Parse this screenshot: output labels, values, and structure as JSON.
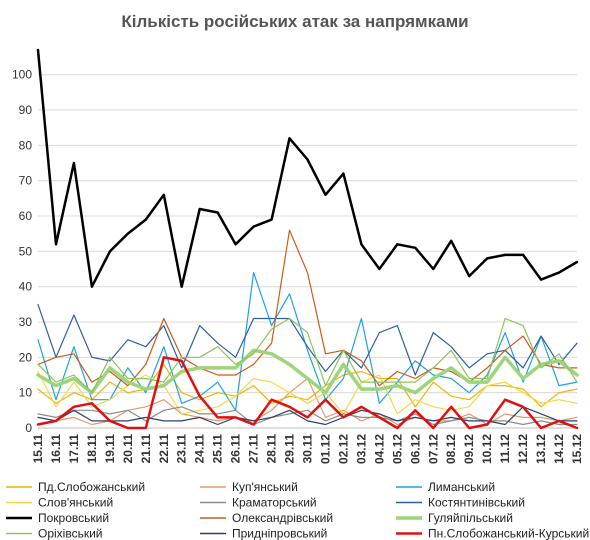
{
  "chart_data": {
    "type": "line",
    "title": "Кількість російських атак за напрямками",
    "xlabel": "",
    "ylabel": "",
    "ylim": [
      0,
      107
    ],
    "yticks": [
      0,
      10,
      20,
      30,
      40,
      50,
      60,
      70,
      80,
      90,
      100
    ],
    "grid": "horizontal",
    "legend_position": "bottom",
    "x": [
      "15.11",
      "16.11",
      "17.11",
      "18.11",
      "19.11",
      "20.11",
      "21.11",
      "22.11",
      "23.11",
      "24.11",
      "25.11",
      "26.11",
      "27.11",
      "28.11",
      "29.11",
      "30.11",
      "01.12",
      "02.12",
      "03.12",
      "04.12",
      "05.12",
      "06.12",
      "07.12",
      "08.12",
      "09.12",
      "10.12",
      "11.12",
      "12.12",
      "13.12",
      "14.12",
      "15.12"
    ],
    "series": [
      {
        "name": "Пд.Слобожанський",
        "color": "#f0b400",
        "width": 1.2,
        "values": [
          11,
          7,
          10,
          8,
          13,
          10,
          11,
          18,
          10,
          8,
          10,
          9,
          12,
          7,
          9,
          8,
          12,
          15,
          16,
          14,
          14,
          6,
          13,
          9,
          8,
          12,
          12,
          11,
          6,
          10,
          11
        ]
      },
      {
        "name": "Куп'янський",
        "color": "#e39a6a",
        "width": 1.2,
        "values": [
          1,
          2,
          3,
          1,
          2,
          5,
          6,
          8,
          4,
          3,
          2,
          3,
          2,
          5,
          10,
          14,
          3,
          5,
          2,
          4,
          1,
          3,
          2,
          2,
          4,
          1,
          4,
          3,
          3,
          2,
          3
        ]
      },
      {
        "name": "Лиманський",
        "color": "#1fa2e0",
        "width": 1.2,
        "values": [
          25,
          8,
          23,
          8,
          8,
          17,
          10,
          23,
          7,
          9,
          13,
          5,
          44,
          29,
          38,
          22,
          8,
          14,
          31,
          7,
          13,
          19,
          15,
          14,
          10,
          15,
          27,
          13,
          26,
          12,
          13
        ]
      },
      {
        "name": "Слов'янський",
        "color": "#f3d84a",
        "width": 1.2,
        "values": [
          16,
          6,
          13,
          6,
          8,
          12,
          15,
          12,
          4,
          5,
          6,
          9,
          14,
          13,
          10,
          7,
          10,
          4,
          13,
          15,
          4,
          8,
          6,
          5,
          6,
          12,
          13,
          10,
          7,
          8,
          7
        ]
      },
      {
        "name": "Краматорський",
        "color": "#8c8c8c",
        "width": 1.2,
        "values": [
          4,
          3,
          5,
          5,
          4,
          5,
          2,
          5,
          6,
          4,
          4,
          5,
          1,
          3,
          4,
          5,
          2,
          4,
          3,
          3,
          2,
          4,
          1,
          2,
          3,
          2,
          2,
          1,
          2,
          1,
          1
        ]
      },
      {
        "name": "Костянтинівський",
        "color": "#2e5fa0",
        "width": 1.2,
        "values": [
          35,
          20,
          32,
          20,
          19,
          25,
          23,
          29,
          17,
          29,
          24,
          20,
          31,
          31,
          31,
          23,
          16,
          22,
          17,
          27,
          29,
          15,
          27,
          23,
          17,
          21,
          22,
          17,
          26,
          18,
          24
        ]
      },
      {
        "name": "Покровський",
        "color": "#000000",
        "width": 2.5,
        "values": [
          107,
          52,
          75,
          40,
          50,
          55,
          59,
          66,
          40,
          62,
          61,
          52,
          57,
          59,
          82,
          76,
          66,
          72,
          52,
          45,
          52,
          51,
          45,
          53,
          43,
          48,
          49,
          49,
          42,
          44,
          47
        ]
      },
      {
        "name": "Олександрівський",
        "color": "#c95b1c",
        "width": 1.2,
        "values": [
          18,
          20,
          21,
          13,
          16,
          12,
          18,
          31,
          20,
          17,
          15,
          15,
          18,
          24,
          56,
          44,
          21,
          22,
          19,
          12,
          16,
          14,
          17,
          16,
          13,
          17,
          22,
          26,
          18,
          17,
          17
        ]
      },
      {
        "name": "Гуляйпільський",
        "color": "#9ed47a",
        "width": 3.5,
        "values": [
          15,
          12,
          14,
          10,
          17,
          13,
          11,
          12,
          16,
          17,
          17,
          17,
          22,
          21,
          18,
          14,
          10,
          18,
          11,
          11,
          12,
          10,
          14,
          17,
          13,
          13,
          20,
          14,
          18,
          19,
          15
        ]
      },
      {
        "name": "Оріхівський",
        "color": "#8fc25a",
        "width": 1.2,
        "values": [
          18,
          13,
          15,
          10,
          20,
          14,
          14,
          13,
          20,
          20,
          23,
          18,
          21,
          28,
          31,
          27,
          12,
          22,
          13,
          13,
          13,
          13,
          17,
          22,
          14,
          14,
          31,
          29,
          17,
          21,
          13
        ]
      },
      {
        "name": "Придніпровський",
        "color": "#2b4270",
        "width": 1.2,
        "values": [
          3,
          2,
          5,
          2,
          2,
          2,
          3,
          2,
          2,
          3,
          1,
          3,
          2,
          3,
          5,
          2,
          1,
          3,
          5,
          4,
          2,
          3,
          2,
          3,
          2,
          2,
          1,
          6,
          4,
          2,
          2
        ]
      },
      {
        "name": "Пн.Слобожанський-Курський",
        "color": "#e01010",
        "width": 2.5,
        "values": [
          1,
          2,
          6,
          7,
          2,
          0,
          0,
          20,
          19,
          9,
          3,
          3,
          1,
          8,
          6,
          3,
          8,
          3,
          6,
          3,
          0,
          5,
          0,
          6,
          0,
          1,
          8,
          6,
          0,
          2,
          0
        ]
      }
    ]
  }
}
